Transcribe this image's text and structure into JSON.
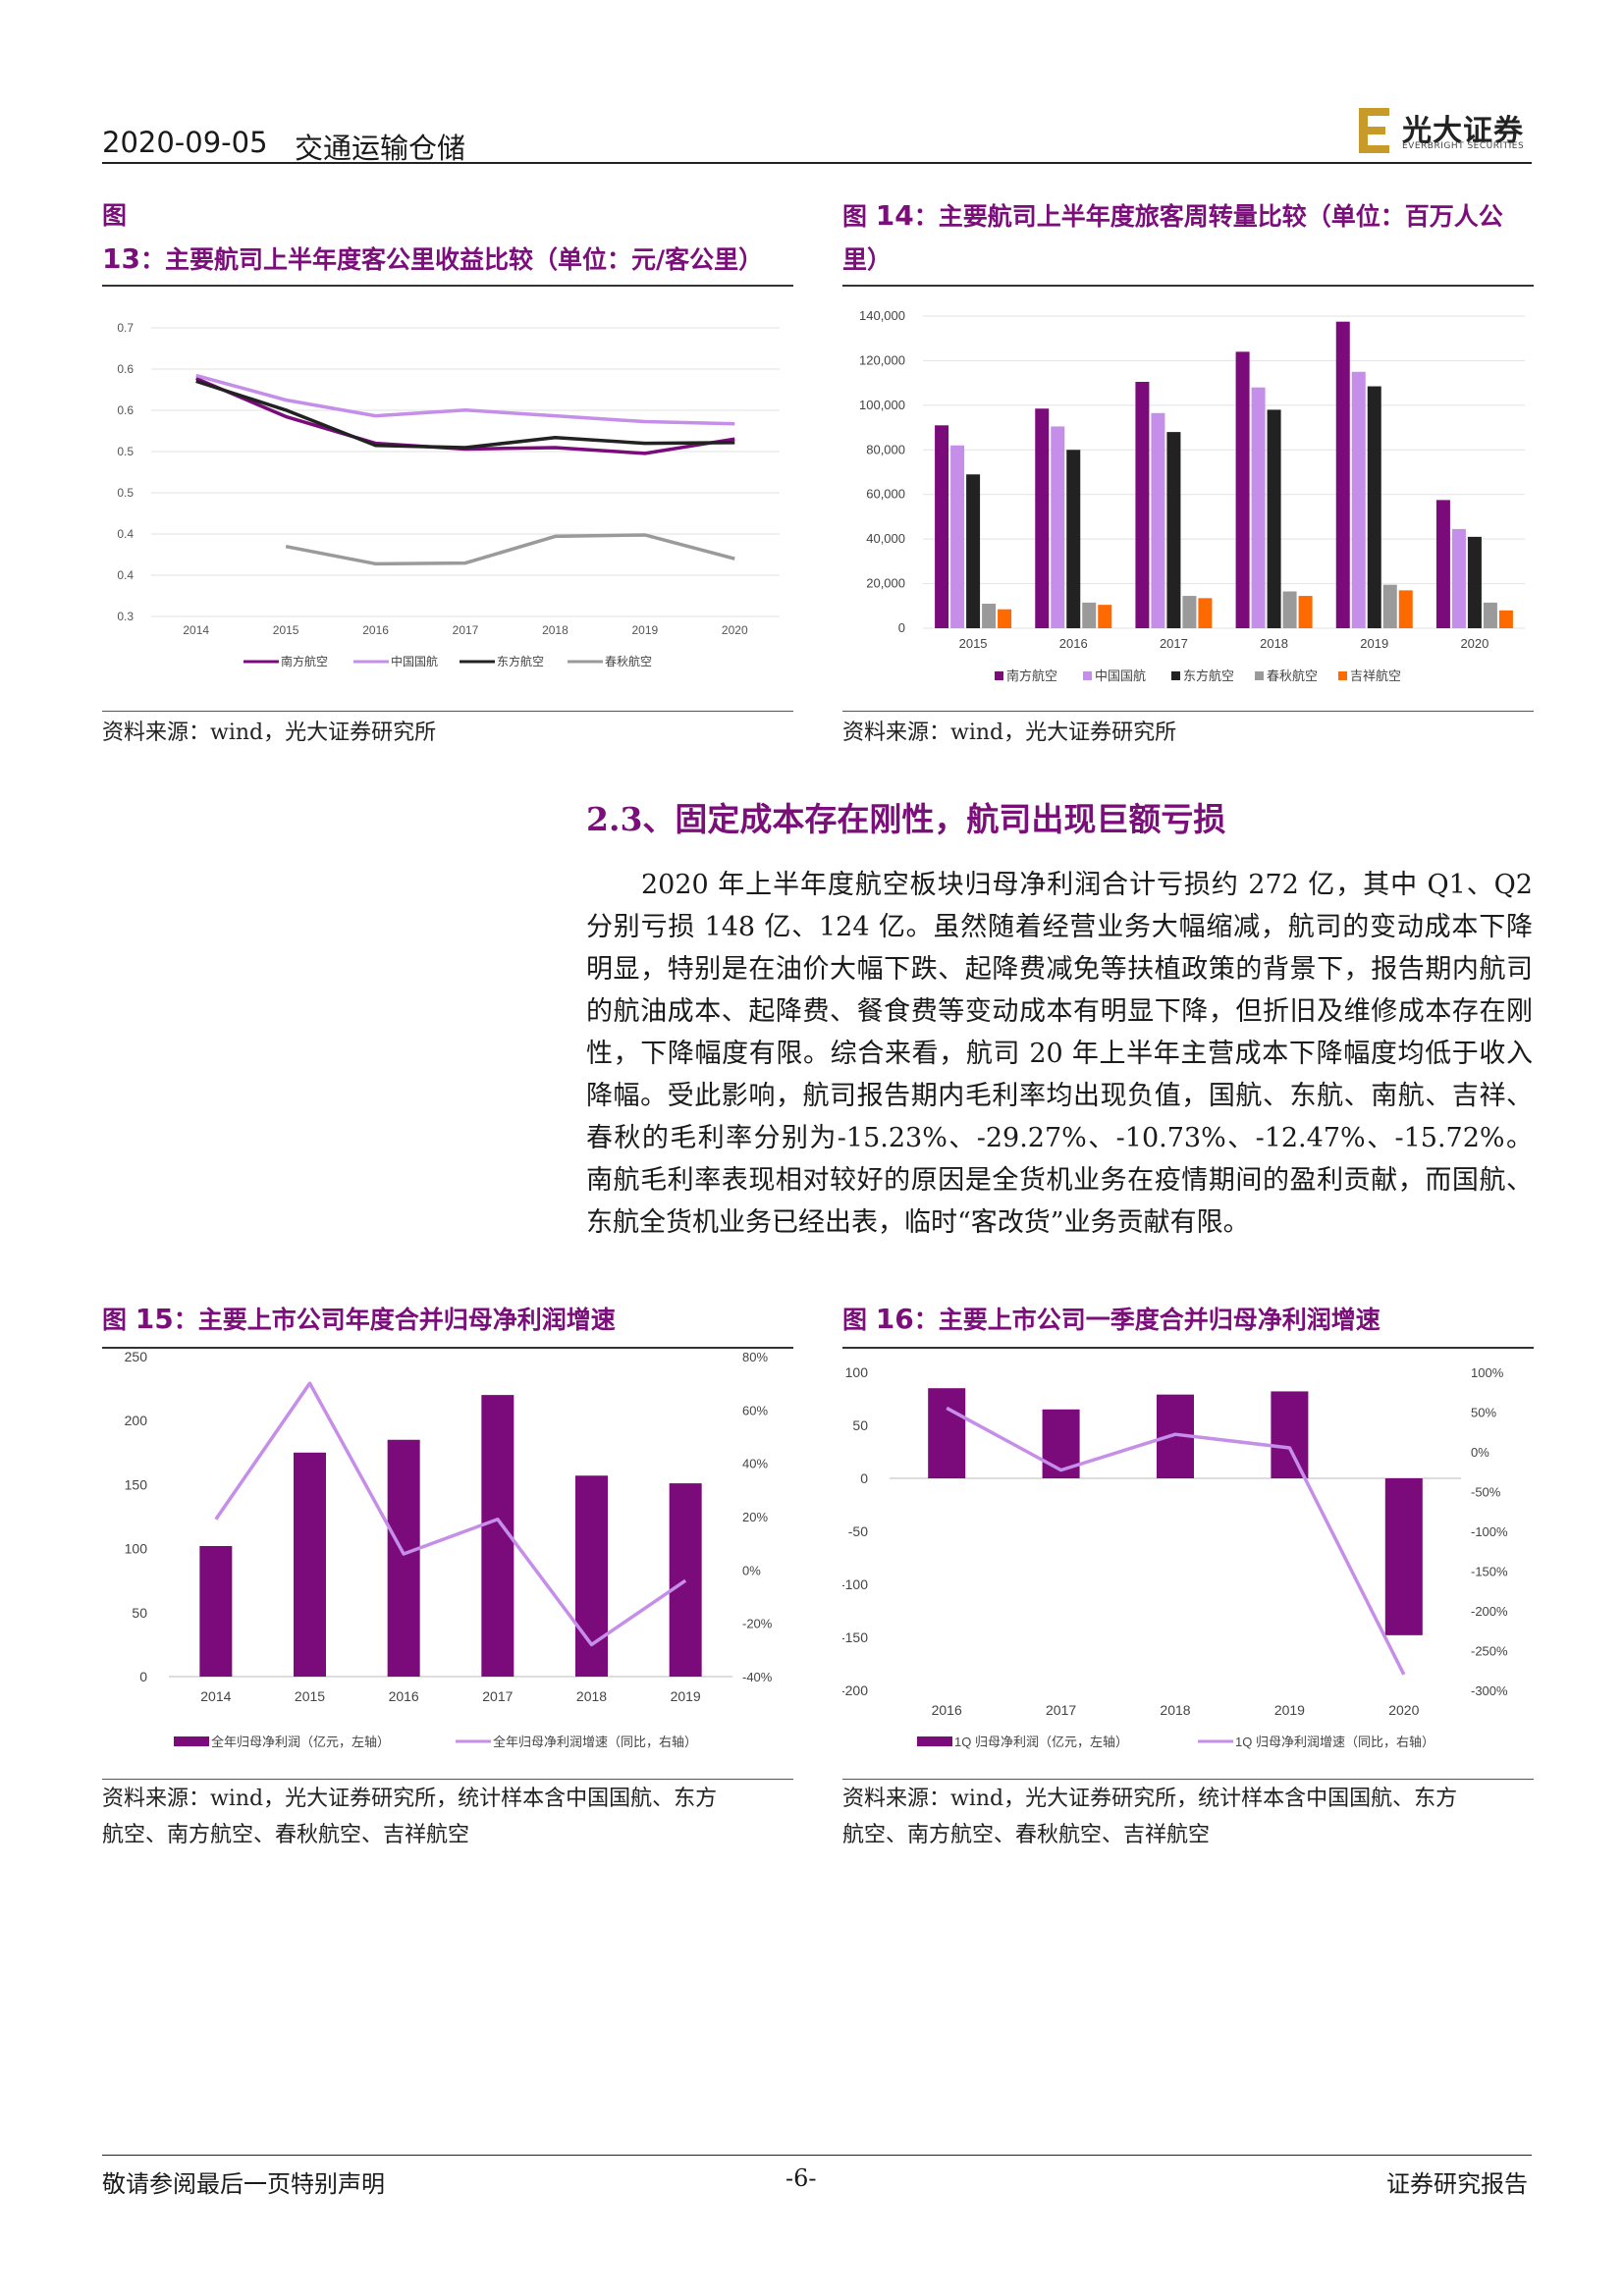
{
  "header": {
    "date": "2020-09-05",
    "sector": "交通运输仓储",
    "logo_cn": "光大证券",
    "logo_en": "EVERBRIGHT SECURITIES"
  },
  "fig13": {
    "prefix": "图 ",
    "num": "13",
    "title": "：主要航司上半年度客公里收益比较（单位：元/客公里）",
    "source": "资料来源：wind，光大证券研究所"
  },
  "fig14": {
    "prefix": "图 ",
    "num": "14",
    "title": "：主要航司上半年度旅客周转量比较（单位：百万人公里）",
    "source": "资料来源：wind，光大证券研究所"
  },
  "section": {
    "title": "2.3、固定成本存在刚性，航司出现巨额亏损"
  },
  "paragraph": "2020 年上半年度航空板块归母净利润合计亏损约 272 亿，其中 Q1、Q2 分别亏损 148 亿、124 亿。虽然随着经营业务大幅缩减，航司的变动成本下降明显，特别是在油价大幅下跌、起降费减免等扶植政策的背景下，报告期内航司的航油成本、起降费、餐食费等变动成本有明显下降，但折旧及维修成本存在刚性，下降幅度有限。综合来看，航司 20 年上半年主营成本下降幅度均低于收入降幅。受此影响，航司报告期内毛利率均出现负值，国航、东航、南航、吉祥、春秋的毛利率分别为-15.23%、-29.27%、-10.73%、-12.47%、-15.72%。南航毛利率表现相对较好的原因是全货机业务在疫情期间的盈利贡献，而国航、东航全货机业务已经出表，临时“客改货”业务贡献有限。",
  "fig15": {
    "prefix": "图 ",
    "num": "15",
    "title": "：主要上市公司年度合并归母净利润增速",
    "source_line1": "资料来源：wind，光大证券研究所，统计样本含中国国航、东方",
    "source_line2": "航空、南方航空、春秋航空、吉祥航空"
  },
  "fig16": {
    "prefix": "图 ",
    "num": "16",
    "title": "：主要上市公司一季度合并归母净利润增速",
    "source_line1": "资料来源：wind，光大证券研究所，统计样本含中国国航、东方",
    "source_line2": "航空、南方航空、春秋航空、吉祥航空"
  },
  "footer": {
    "left": "敬请参阅最后一页特别声明",
    "center": "-6-",
    "right": "证券研究报告"
  },
  "colors": {
    "purple": "#7b0a7b",
    "lilac": "#c58ee8",
    "dark": "#222222",
    "gray": "#9a9a9a",
    "orange": "#ff6a00"
  },
  "chart_data": [
    {
      "id": "fig13",
      "type": "line",
      "x": [
        "2014",
        "2015",
        "2016",
        "2017",
        "2018",
        "2019",
        "2020"
      ],
      "ylim": [
        0.3,
        0.7
      ],
      "ytick_labels": [
        "0.3",
        "0.4",
        "0.4",
        "0.5",
        "0.5",
        "0.6",
        "0.6",
        "0.7"
      ],
      "grid": true,
      "legend": "bottom",
      "series": [
        {
          "name": "南方航空",
          "color": "#7b0a7b",
          "values": [
            0.63,
            0.577,
            0.54,
            0.532,
            0.534,
            0.526,
            0.546
          ]
        },
        {
          "name": "中国国航",
          "color": "#c58ee8",
          "values": [
            0.634,
            0.6,
            0.578,
            0.586,
            0.578,
            0.57,
            0.567
          ]
        },
        {
          "name": "东方航空",
          "color": "#222222",
          "values": [
            0.626,
            0.586,
            0.537,
            0.534,
            0.548,
            0.54,
            0.541
          ]
        },
        {
          "name": "春秋航空",
          "color": "#9a9a9a",
          "values": [
            null,
            0.397,
            0.373,
            0.374,
            0.411,
            0.413,
            0.38
          ]
        }
      ]
    },
    {
      "id": "fig14",
      "type": "bar",
      "categories": [
        "2015",
        "2016",
        "2017",
        "2018",
        "2019",
        "2020"
      ],
      "ylim": [
        0,
        140000
      ],
      "ytick_labels": [
        "0",
        "20,000",
        "40,000",
        "60,000",
        "80,000",
        "100,000",
        "120,000",
        "140,000"
      ],
      "grid": true,
      "legend": "bottom",
      "series": [
        {
          "name": "南方航空",
          "color": "#7b0a7b",
          "values": [
            91000,
            98500,
            110500,
            124000,
            137500,
            57500
          ]
        },
        {
          "name": "中国国航",
          "color": "#c58ee8",
          "values": [
            82000,
            90500,
            96500,
            108000,
            115000,
            44500
          ]
        },
        {
          "name": "东方航空",
          "color": "#222222",
          "values": [
            69000,
            80000,
            88000,
            98000,
            108500,
            41000
          ]
        },
        {
          "name": "春秋航空",
          "color": "#9a9a9a",
          "values": [
            11000,
            11500,
            14500,
            16500,
            19500,
            11500
          ]
        },
        {
          "name": "吉祥航空",
          "color": "#ff6a00",
          "values": [
            8500,
            10500,
            13500,
            14500,
            17000,
            8000
          ]
        }
      ]
    },
    {
      "id": "fig15",
      "type": "bar",
      "categories": [
        "2014",
        "2015",
        "2016",
        "2017",
        "2018",
        "2019"
      ],
      "ylim": [
        0,
        250
      ],
      "y2lim": [
        -0.4,
        0.8
      ],
      "ytick_labels": [
        "0",
        "50",
        "100",
        "150",
        "200",
        "250"
      ],
      "y2tick_labels": [
        "-40%",
        "-20%",
        "0%",
        "20%",
        "40%",
        "60%",
        "80%"
      ],
      "legend": "bottom",
      "series": [
        {
          "name": "全年归母净利润（亿元，左轴）",
          "type": "bar",
          "color": "#7b0a7b",
          "values": [
            102,
            175,
            185,
            220,
            157,
            151
          ]
        },
        {
          "name": "全年归母净利润增速（同比，右轴）",
          "type": "line",
          "axis": "right",
          "color": "#c58ee8",
          "values": [
            0.19,
            0.7,
            0.06,
            0.19,
            -0.28,
            -0.04
          ]
        }
      ]
    },
    {
      "id": "fig16",
      "type": "bar",
      "categories": [
        "2016",
        "2017",
        "2018",
        "2019",
        "2020"
      ],
      "ylim": [
        -200,
        100
      ],
      "y2lim": [
        -3.0,
        1.0
      ],
      "ytick_labels": [
        "-200",
        "-150",
        "-100",
        "-50",
        "0",
        "50",
        "100"
      ],
      "y2tick_labels": [
        "-300%",
        "-250%",
        "-200%",
        "-150%",
        "-100%",
        "-50%",
        "0%",
        "50%",
        "100%"
      ],
      "legend": "bottom",
      "series": [
        {
          "name": "1Q 归母净利润（亿元，左轴）",
          "type": "bar",
          "color": "#7b0a7b",
          "values": [
            85,
            65,
            79,
            82,
            -148
          ]
        },
        {
          "name": "1Q 归母净利润增速（同比，右轴）",
          "type": "line",
          "axis": "right",
          "color": "#c58ee8",
          "values": [
            0.55,
            -0.23,
            0.22,
            0.05,
            -2.8
          ]
        }
      ]
    }
  ]
}
